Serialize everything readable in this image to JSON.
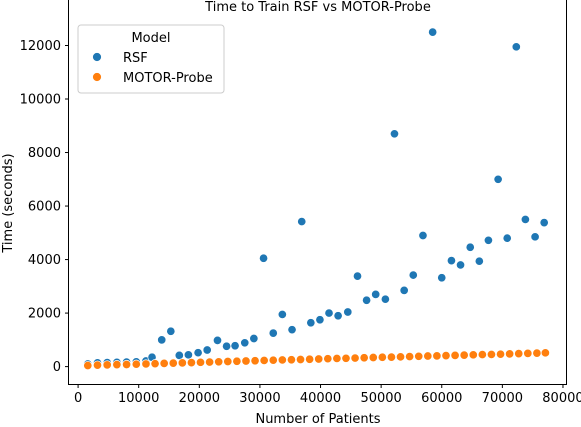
{
  "chart_data": {
    "type": "scatter",
    "title": "Time to Train RSF vs MOTOR-Probe",
    "xlabel": "Number of Patients",
    "ylabel": "Time (seconds)",
    "xlim": [
      -1500,
      80500
    ],
    "ylim": [
      -650,
      13700
    ],
    "x_ticks": [
      0,
      10000,
      20000,
      30000,
      40000,
      50000,
      60000,
      70000,
      80000
    ],
    "y_ticks": [
      0,
      2000,
      4000,
      6000,
      8000,
      10000,
      12000
    ],
    "grid": false,
    "legend": {
      "title": "Model",
      "placement": "top-left"
    },
    "colors": {
      "RSF": "#1f77b4",
      "MOTOR-Probe": "#ff7f0e"
    },
    "series": [
      {
        "name": "RSF",
        "points": [
          [
            1600,
            100
          ],
          [
            3200,
            140
          ],
          [
            4800,
            150
          ],
          [
            6400,
            160
          ],
          [
            8000,
            170
          ],
          [
            9600,
            180
          ],
          [
            11200,
            210
          ],
          [
            12200,
            350
          ],
          [
            13800,
            1000
          ],
          [
            15300,
            1320
          ],
          [
            16700,
            420
          ],
          [
            18200,
            440
          ],
          [
            19800,
            520
          ],
          [
            21300,
            620
          ],
          [
            23000,
            980
          ],
          [
            24500,
            760
          ],
          [
            25900,
            780
          ],
          [
            27500,
            890
          ],
          [
            29000,
            1050
          ],
          [
            30600,
            4050
          ],
          [
            32200,
            1250
          ],
          [
            33700,
            1950
          ],
          [
            35300,
            1380
          ],
          [
            36900,
            5420
          ],
          [
            38400,
            1640
          ],
          [
            39900,
            1750
          ],
          [
            41400,
            2000
          ],
          [
            42900,
            1900
          ],
          [
            44500,
            2040
          ],
          [
            46100,
            3380
          ],
          [
            47600,
            2480
          ],
          [
            49100,
            2700
          ],
          [
            50700,
            2520
          ],
          [
            52200,
            8700
          ],
          [
            53800,
            2850
          ],
          [
            55300,
            3420
          ],
          [
            56900,
            4900
          ],
          [
            58500,
            12500
          ],
          [
            60000,
            3320
          ],
          [
            61600,
            3960
          ],
          [
            63100,
            3800
          ],
          [
            64700,
            4460
          ],
          [
            66200,
            3940
          ],
          [
            67700,
            4720
          ],
          [
            69300,
            7000
          ],
          [
            70800,
            4800
          ],
          [
            72300,
            11950
          ],
          [
            73800,
            5500
          ],
          [
            75400,
            4850
          ],
          [
            76900,
            5380
          ]
        ]
      },
      {
        "name": "MOTOR-Probe",
        "points": [
          [
            1600,
            40
          ],
          [
            3200,
            55
          ],
          [
            4800,
            65
          ],
          [
            6400,
            75
          ],
          [
            8000,
            80
          ],
          [
            9600,
            90
          ],
          [
            11200,
            100
          ],
          [
            12700,
            110
          ],
          [
            14200,
            120
          ],
          [
            15700,
            130
          ],
          [
            17200,
            140
          ],
          [
            18700,
            150
          ],
          [
            20200,
            160
          ],
          [
            21700,
            170
          ],
          [
            23200,
            180
          ],
          [
            24700,
            190
          ],
          [
            26200,
            200
          ],
          [
            27700,
            210
          ],
          [
            29200,
            220
          ],
          [
            30700,
            230
          ],
          [
            32200,
            240
          ],
          [
            33700,
            250
          ],
          [
            35200,
            255
          ],
          [
            36700,
            265
          ],
          [
            38200,
            275
          ],
          [
            39700,
            285
          ],
          [
            41200,
            295
          ],
          [
            42700,
            305
          ],
          [
            44200,
            310
          ],
          [
            45700,
            320
          ],
          [
            47200,
            330
          ],
          [
            48700,
            340
          ],
          [
            50200,
            350
          ],
          [
            51700,
            355
          ],
          [
            53200,
            365
          ],
          [
            54700,
            375
          ],
          [
            56200,
            385
          ],
          [
            57700,
            395
          ],
          [
            59200,
            400
          ],
          [
            60700,
            410
          ],
          [
            62200,
            420
          ],
          [
            63700,
            430
          ],
          [
            65200,
            440
          ],
          [
            66700,
            450
          ],
          [
            68200,
            455
          ],
          [
            69700,
            465
          ],
          [
            71200,
            475
          ],
          [
            72700,
            485
          ],
          [
            74200,
            495
          ],
          [
            75700,
            505
          ],
          [
            77100,
            515
          ]
        ]
      }
    ]
  }
}
